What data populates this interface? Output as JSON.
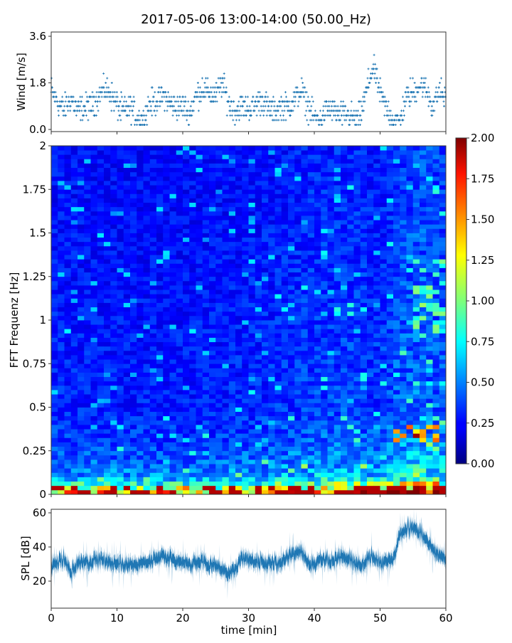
{
  "chart_data": [
    {
      "type": "scatter",
      "title": "2017-05-06 13:00-14:00 (50.00_Hz)",
      "ylabel": "Wind [m/s]",
      "xlim": [
        0,
        60
      ],
      "ylim": [
        0,
        3.6
      ],
      "yticks": [
        "0.0",
        "1.8",
        "3.6"
      ],
      "marker": "+",
      "color": "#1f77b4",
      "per_minute_mean_wind": [
        1.5,
        1.0,
        0.8,
        1.2,
        0.7,
        0.8,
        0.9,
        1.2,
        1.6,
        1.4,
        0.9,
        0.7,
        0.9,
        0.5,
        0.4,
        1.0,
        1.1,
        1.3,
        1.0,
        0.9,
        0.9,
        0.6,
        1.3,
        1.6,
        1.4,
        1.3,
        1.8,
        1.0,
        0.7,
        0.9,
        0.8,
        0.9,
        1.2,
        0.8,
        0.7,
        0.9,
        0.8,
        1.2,
        1.5,
        0.9,
        0.5,
        0.4,
        0.8,
        0.7,
        0.5,
        0.6,
        0.4,
        0.5,
        1.6,
        2.4,
        1.4,
        0.8,
        0.4,
        0.3,
        1.3,
        1.4,
        1.8,
        1.5,
        0.9,
        1.5,
        1.1
      ]
    },
    {
      "type": "heatmap",
      "ylabel": "FFT Frequenz [Hz]",
      "xlim": [
        0,
        60
      ],
      "ylim": [
        0,
        2
      ],
      "yticks": [
        "0",
        "0.25",
        "0.5",
        "0.75",
        "1",
        "1.25",
        "1.5",
        "1.75",
        "2"
      ],
      "colormap": "jet",
      "colorbar": {
        "range": [
          0,
          2
        ],
        "ticks": [
          "0.00",
          "0.25",
          "0.50",
          "0.75",
          "1.00",
          "1.25",
          "1.50",
          "1.75",
          "2.00"
        ]
      },
      "freq_profile_hz": [
        0,
        0.05,
        0.1,
        0.2,
        0.3,
        0.5,
        1.0,
        1.5,
        2.0
      ],
      "freq_profile_level": [
        1.7,
        0.9,
        0.55,
        0.45,
        0.38,
        0.32,
        0.3,
        0.28,
        0.27
      ],
      "time_profile_min": [
        0,
        10,
        20,
        30,
        40,
        45,
        50,
        53,
        56,
        60
      ],
      "time_profile_gain": [
        1.0,
        0.95,
        0.95,
        1.0,
        1.15,
        1.2,
        1.1,
        1.35,
        1.45,
        1.3
      ]
    },
    {
      "type": "line",
      "ylabel": "SPL [dB]",
      "xlabel": "time [min]",
      "xlim": [
        0,
        60
      ],
      "ylim": [
        4,
        62
      ],
      "xticks": [
        "0",
        "10",
        "20",
        "30",
        "40",
        "50",
        "60"
      ],
      "yticks": [
        "20",
        "40",
        "60"
      ],
      "color": "#1f77b4",
      "per_minute_mean_spl": [
        28,
        32,
        33,
        25,
        30,
        31,
        32,
        33,
        32,
        31,
        31,
        30,
        30,
        30,
        31,
        32,
        33,
        34,
        34,
        32,
        31,
        30,
        30,
        31,
        30,
        29,
        27,
        24,
        28,
        34,
        33,
        31,
        31,
        30,
        31,
        30,
        34,
        38,
        37,
        32,
        30,
        33,
        32,
        32,
        34,
        33,
        30,
        28,
        32,
        35,
        30,
        31,
        33,
        47,
        51,
        51,
        49,
        44,
        38,
        35,
        33
      ]
    }
  ]
}
